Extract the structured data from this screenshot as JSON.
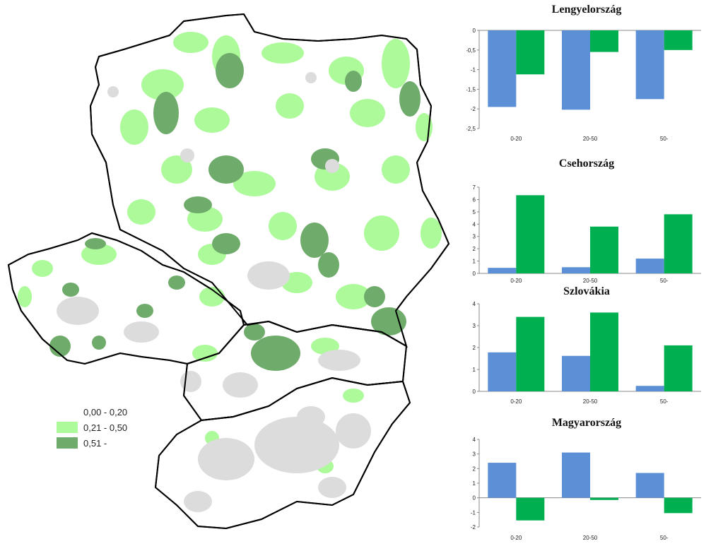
{
  "legend": {
    "items": [
      {
        "label": "0,00 - 0,20",
        "color": "#ffffff"
      },
      {
        "label": "0,21 - 0,50",
        "color": "#adfa9a"
      },
      {
        "label": "0,51 -",
        "color": "#6fac6c"
      }
    ]
  },
  "colors": {
    "blue": "#5b8fd6",
    "green": "#00b050",
    "map_light": "#adfa9a",
    "map_dark": "#6fac6c",
    "map_gray": "#dcdcdc"
  },
  "chart_data": [
    {
      "type": "bar",
      "title": "Lengyelország",
      "categories": [
        "0-20",
        "20-50",
        "50-"
      ],
      "series": [
        {
          "values": [
            -1.95,
            -2.02,
            -1.75
          ]
        },
        {
          "values": [
            -1.12,
            -0.55,
            -0.5
          ]
        }
      ],
      "yticks": [
        "0",
        "-0,5",
        "-1",
        "-1,5",
        "-2",
        "-2,5"
      ],
      "ylim": [
        -2.5,
        0
      ]
    },
    {
      "type": "bar",
      "title": "Csehország",
      "categories": [
        "0-20",
        "20-50",
        "50-"
      ],
      "series": [
        {
          "values": [
            0.45,
            0.5,
            1.2
          ]
        },
        {
          "values": [
            6.35,
            3.8,
            4.8
          ]
        }
      ],
      "yticks": [
        "7",
        "6",
        "5",
        "4",
        "3",
        "2",
        "1",
        "0"
      ],
      "ylim": [
        0,
        7
      ]
    },
    {
      "type": "bar",
      "title": "Szlovákia",
      "categories": [
        "0-20",
        "20-50",
        "50-"
      ],
      "series": [
        {
          "values": [
            1.78,
            1.62,
            0.25
          ]
        },
        {
          "values": [
            3.4,
            3.6,
            2.1
          ]
        }
      ],
      "yticks": [
        "4",
        "3",
        "2",
        "1",
        "0"
      ],
      "ylim": [
        0,
        4
      ]
    },
    {
      "type": "bar",
      "title": "Magyarország",
      "categories": [
        "0-20",
        "20-50",
        "50-"
      ],
      "series": [
        {
          "values": [
            2.4,
            3.1,
            1.7
          ]
        },
        {
          "values": [
            -1.55,
            -0.15,
            -1.05
          ]
        }
      ],
      "yticks": [
        "4",
        "3",
        "2",
        "1",
        "0",
        "-1",
        "-2"
      ],
      "ylim": [
        -2,
        4
      ]
    }
  ]
}
